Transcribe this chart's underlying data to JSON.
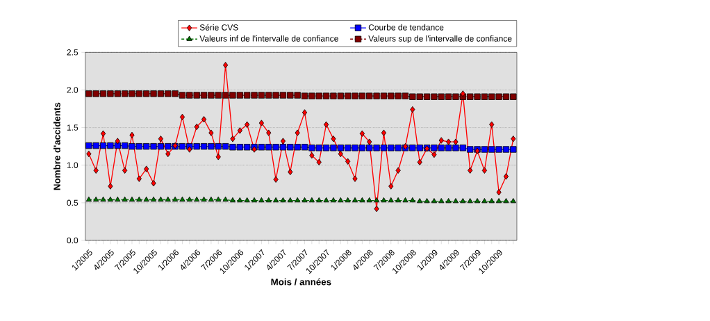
{
  "chart_data": {
    "type": "line",
    "xlabel": "Mois / années",
    "ylabel": "Nombre d'accidents",
    "categories": [
      "1/2005",
      null,
      null,
      "4/2005",
      null,
      null,
      "7/2005",
      null,
      null,
      "10/2005",
      null,
      null,
      "1/2006",
      null,
      null,
      "4/2006",
      null,
      null,
      "7/2006",
      null,
      null,
      "10/2006",
      null,
      null,
      "1/2007",
      null,
      null,
      "4/2007",
      null,
      null,
      "7/2007",
      null,
      null,
      "10/2007",
      null,
      null,
      "1/2008",
      null,
      null,
      "4/2008",
      null,
      null,
      "7/2008",
      null,
      null,
      "10/2008",
      null,
      null,
      "1/2009",
      null,
      null,
      "4/2009",
      null,
      null,
      "7/2009",
      null,
      null,
      "10/2009",
      null,
      null
    ],
    "series": [
      {
        "name": "Série CVS",
        "color": "#ff0000",
        "marker": "diamond",
        "line_style": "solid",
        "values": [
          1.15,
          0.93,
          1.42,
          0.72,
          1.32,
          0.93,
          1.4,
          0.82,
          0.95,
          0.76,
          1.35,
          1.15,
          1.26,
          1.64,
          1.21,
          1.51,
          1.61,
          1.43,
          1.11,
          2.33,
          1.35,
          1.46,
          1.54,
          1.21,
          1.56,
          1.43,
          0.81,
          1.32,
          0.91,
          1.43,
          1.7,
          1.13,
          1.04,
          1.54,
          1.35,
          1.15,
          1.05,
          0.82,
          1.42,
          1.31,
          0.42,
          1.43,
          0.72,
          0.93,
          1.25,
          1.74,
          1.04,
          1.22,
          1.14,
          1.33,
          1.31,
          1.31,
          1.95,
          0.93,
          1.19,
          0.93,
          1.54,
          0.64,
          0.85,
          1.35
        ]
      },
      {
        "name": "Courbe de tendance",
        "color": "#0000ff",
        "marker": "square",
        "line_style": "solid",
        "values": [
          1.26,
          1.26,
          1.26,
          1.26,
          1.26,
          1.26,
          1.25,
          1.25,
          1.25,
          1.25,
          1.25,
          1.25,
          1.25,
          1.25,
          1.25,
          1.25,
          1.25,
          1.25,
          1.25,
          1.25,
          1.24,
          1.24,
          1.24,
          1.24,
          1.24,
          1.24,
          1.24,
          1.24,
          1.24,
          1.24,
          1.24,
          1.23,
          1.23,
          1.23,
          1.23,
          1.23,
          1.23,
          1.23,
          1.23,
          1.23,
          1.23,
          1.23,
          1.23,
          1.23,
          1.23,
          1.23,
          1.23,
          1.23,
          1.23,
          1.23,
          1.23,
          1.23,
          1.23,
          1.21,
          1.21,
          1.21,
          1.21,
          1.21,
          1.21,
          1.21
        ]
      },
      {
        "name": "Valeurs inf de l'intervalle de confiance",
        "color": "#007000",
        "marker": "triangle",
        "line_style": "dashed",
        "values": [
          0.54,
          0.54,
          0.54,
          0.54,
          0.54,
          0.54,
          0.54,
          0.54,
          0.54,
          0.54,
          0.54,
          0.54,
          0.54,
          0.54,
          0.54,
          0.54,
          0.54,
          0.54,
          0.54,
          0.54,
          0.53,
          0.53,
          0.53,
          0.53,
          0.53,
          0.53,
          0.53,
          0.53,
          0.53,
          0.53,
          0.53,
          0.53,
          0.53,
          0.53,
          0.53,
          0.53,
          0.53,
          0.53,
          0.53,
          0.53,
          0.53,
          0.53,
          0.53,
          0.53,
          0.53,
          0.53,
          0.52,
          0.52,
          0.52,
          0.52,
          0.52,
          0.52,
          0.52,
          0.52,
          0.52,
          0.52,
          0.52,
          0.52,
          0.52,
          0.52
        ]
      },
      {
        "name": "Valeurs sup de l'intervalle de confiance",
        "color": "#800000",
        "marker": "square",
        "line_style": "dashed",
        "values": [
          1.95,
          1.95,
          1.95,
          1.95,
          1.95,
          1.95,
          1.95,
          1.95,
          1.95,
          1.95,
          1.95,
          1.95,
          1.95,
          1.93,
          1.93,
          1.93,
          1.93,
          1.93,
          1.93,
          1.93,
          1.93,
          1.93,
          1.93,
          1.93,
          1.93,
          1.93,
          1.93,
          1.93,
          1.93,
          1.93,
          1.92,
          1.92,
          1.92,
          1.92,
          1.92,
          1.92,
          1.92,
          1.92,
          1.92,
          1.92,
          1.92,
          1.92,
          1.92,
          1.92,
          1.92,
          1.91,
          1.91,
          1.91,
          1.91,
          1.91,
          1.91,
          1.91,
          1.91,
          1.91,
          1.91,
          1.91,
          1.91,
          1.91,
          1.91,
          1.91
        ]
      }
    ],
    "ylim": [
      0,
      2.5
    ],
    "yticks": [
      {
        "value": 0,
        "label": "0.0"
      },
      {
        "value": 0.5,
        "label": "0.5"
      },
      {
        "value": 1,
        "label": "1.0"
      },
      {
        "value": 1.5,
        "label": "1.5"
      },
      {
        "value": 2,
        "label": "2.0"
      },
      {
        "value": 2.5,
        "label": "2.5"
      }
    ],
    "grid": "y",
    "legend": "top right"
  }
}
